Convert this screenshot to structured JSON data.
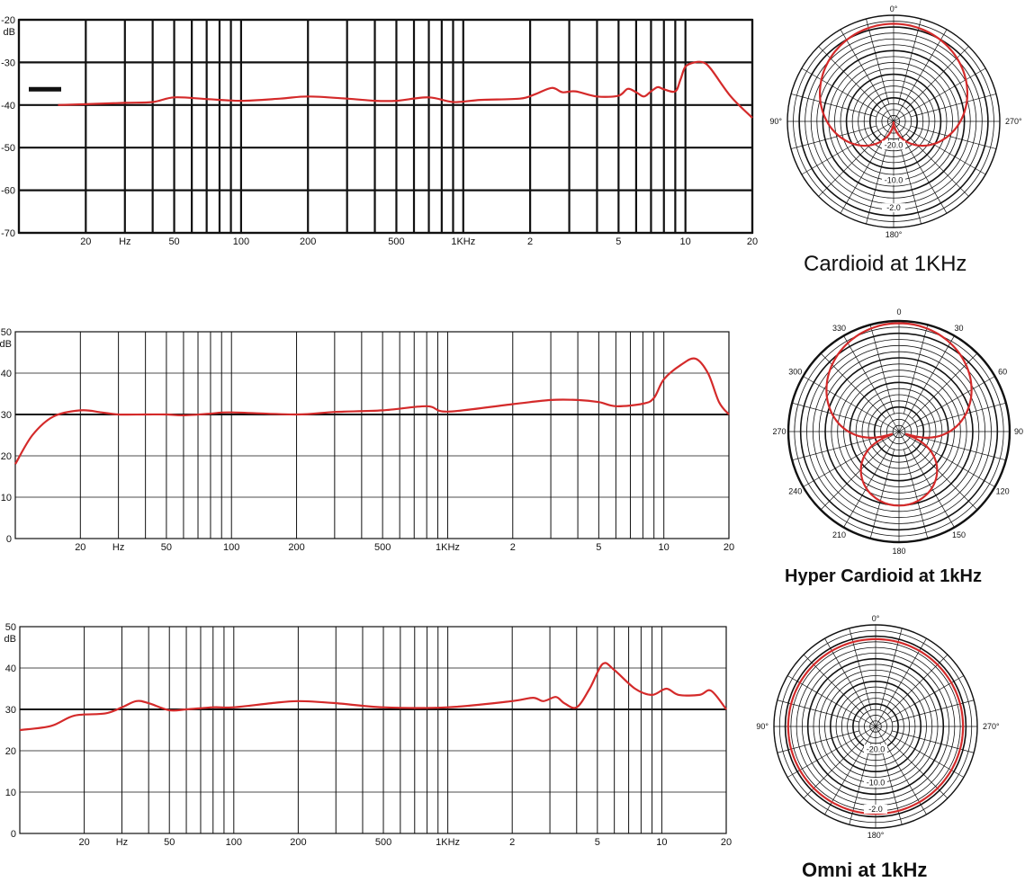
{
  "chart_data": [
    {
      "type": "line",
      "y_unit": "dB",
      "x_tick_labels": [
        "20",
        "Hz",
        "50",
        "100",
        "200",
        "500",
        "1KHz",
        "2",
        "5",
        "10",
        "20"
      ],
      "y_tick_labels": [
        "-20",
        "-30",
        "-40",
        "-50",
        "-60",
        "-70"
      ],
      "ylim": [
        -70,
        -20
      ],
      "xlim_hz": [
        10,
        20000
      ],
      "series": [
        {
          "color": "#d42a2a",
          "points": [
            [
              15,
              -40
            ],
            [
              20,
              -39.8
            ],
            [
              30,
              -39.5
            ],
            [
              40,
              -39.3
            ],
            [
              50,
              -38.2
            ],
            [
              70,
              -38.6
            ],
            [
              100,
              -39
            ],
            [
              150,
              -38.5
            ],
            [
              200,
              -38
            ],
            [
              300,
              -38.5
            ],
            [
              400,
              -39
            ],
            [
              500,
              -39
            ],
            [
              700,
              -38.2
            ],
            [
              900,
              -39.3
            ],
            [
              1200,
              -38.8
            ],
            [
              1800,
              -38.5
            ],
            [
              2100,
              -37.5
            ],
            [
              2500,
              -36
            ],
            [
              2800,
              -37
            ],
            [
              3200,
              -36.8
            ],
            [
              4000,
              -38
            ],
            [
              5000,
              -37.8
            ],
            [
              5500,
              -36.2
            ],
            [
              6000,
              -37
            ],
            [
              6500,
              -38
            ],
            [
              7000,
              -36.8
            ],
            [
              7500,
              -35.8
            ],
            [
              8000,
              -36.3
            ],
            [
              9000,
              -36.8
            ],
            [
              9500,
              -34
            ],
            [
              10000,
              -31
            ],
            [
              11000,
              -30
            ],
            [
              12000,
              -30
            ],
            [
              13000,
              -31.5
            ],
            [
              16000,
              -38
            ],
            [
              20000,
              -43
            ]
          ]
        }
      ],
      "marker": "legend-bar"
    },
    {
      "type": "line",
      "y_unit": "dB",
      "x_tick_labels": [
        "20",
        "Hz",
        "50",
        "100",
        "200",
        "500",
        "1KHz",
        "2",
        "5",
        "10",
        "20"
      ],
      "y_tick_labels": [
        "50",
        "40",
        "30",
        "20",
        "10",
        "0"
      ],
      "ylim": [
        0,
        50
      ],
      "xlim_hz": [
        10,
        20000
      ],
      "series": [
        {
          "color": "#d42a2a",
          "points": [
            [
              10,
              18
            ],
            [
              12,
              25
            ],
            [
              15,
              29.5
            ],
            [
              20,
              31
            ],
            [
              25,
              30.5
            ],
            [
              30,
              30
            ],
            [
              40,
              30
            ],
            [
              50,
              30
            ],
            [
              60,
              29.8
            ],
            [
              80,
              30.2
            ],
            [
              100,
              30.5
            ],
            [
              200,
              30
            ],
            [
              300,
              30.6
            ],
            [
              500,
              31
            ],
            [
              800,
              32
            ],
            [
              1000,
              30.7
            ],
            [
              2000,
              32.5
            ],
            [
              3000,
              33.5
            ],
            [
              4000,
              33.5
            ],
            [
              5000,
              33
            ],
            [
              6000,
              32
            ],
            [
              8000,
              32.6
            ],
            [
              9000,
              34
            ],
            [
              10000,
              38.5
            ],
            [
              12000,
              42
            ],
            [
              14000,
              43.5
            ],
            [
              16000,
              40
            ],
            [
              18000,
              33
            ],
            [
              20000,
              30
            ]
          ]
        }
      ]
    },
    {
      "type": "line",
      "y_unit": "dB",
      "x_tick_labels": [
        "20",
        "Hz",
        "50",
        "100",
        "200",
        "500",
        "1KHz",
        "2",
        "5",
        "10",
        "20"
      ],
      "y_tick_labels": [
        "50",
        "40",
        "30",
        "20",
        "10",
        "0"
      ],
      "ylim": [
        0,
        50
      ],
      "xlim_hz": [
        10,
        20000
      ],
      "series": [
        {
          "color": "#d42a2a",
          "points": [
            [
              10,
              25
            ],
            [
              14,
              26
            ],
            [
              18,
              28.5
            ],
            [
              25,
              29
            ],
            [
              30,
              30.5
            ],
            [
              35,
              32
            ],
            [
              40,
              31.5
            ],
            [
              50,
              29.8
            ],
            [
              60,
              30
            ],
            [
              80,
              30.5
            ],
            [
              100,
              30.5
            ],
            [
              150,
              31.5
            ],
            [
              200,
              32
            ],
            [
              300,
              31.5
            ],
            [
              500,
              30.5
            ],
            [
              1000,
              30.5
            ],
            [
              2000,
              32
            ],
            [
              2500,
              32.8
            ],
            [
              2800,
              32
            ],
            [
              3200,
              33
            ],
            [
              3500,
              31.5
            ],
            [
              4000,
              30.5
            ],
            [
              4600,
              35
            ],
            [
              5300,
              41
            ],
            [
              6000,
              39.5
            ],
            [
              7500,
              35
            ],
            [
              9000,
              33.5
            ],
            [
              10500,
              35
            ],
            [
              12000,
              33.5
            ],
            [
              15000,
              33.5
            ],
            [
              17000,
              34.5
            ],
            [
              20000,
              30
            ]
          ]
        }
      ]
    },
    {
      "type": "polar",
      "angle_labels": [
        "0°",
        "90°",
        "270°",
        "180°"
      ],
      "ring_labels": [
        "-20.0",
        "-10.0",
        "-2.0"
      ],
      "pattern": "cardioid",
      "series": [
        {
          "color": "#d42a2a"
        }
      ]
    },
    {
      "type": "polar",
      "angle_labels": [
        "0",
        "30",
        "60",
        "90",
        "120",
        "150",
        "180",
        "210",
        "240",
        "270",
        "300",
        "330"
      ],
      "ring_labels": [],
      "pattern": "hypercardioid",
      "series": [
        {
          "color": "#d42a2a"
        }
      ]
    },
    {
      "type": "polar",
      "angle_labels": [
        "0°",
        "90°",
        "270°",
        "180°"
      ],
      "ring_labels": [
        "-20.0",
        "-10.0",
        "-2.0"
      ],
      "pattern": "omni",
      "series": [
        {
          "color": "#d42a2a"
        }
      ]
    }
  ],
  "captions": {
    "cardioid": "Cardioid at 1KHz",
    "hyper": "Hyper Cardioid at 1kHz",
    "omni": "Omni at 1kHz"
  },
  "colors": {
    "curve": "#d42a2a",
    "grid": "#111111"
  }
}
